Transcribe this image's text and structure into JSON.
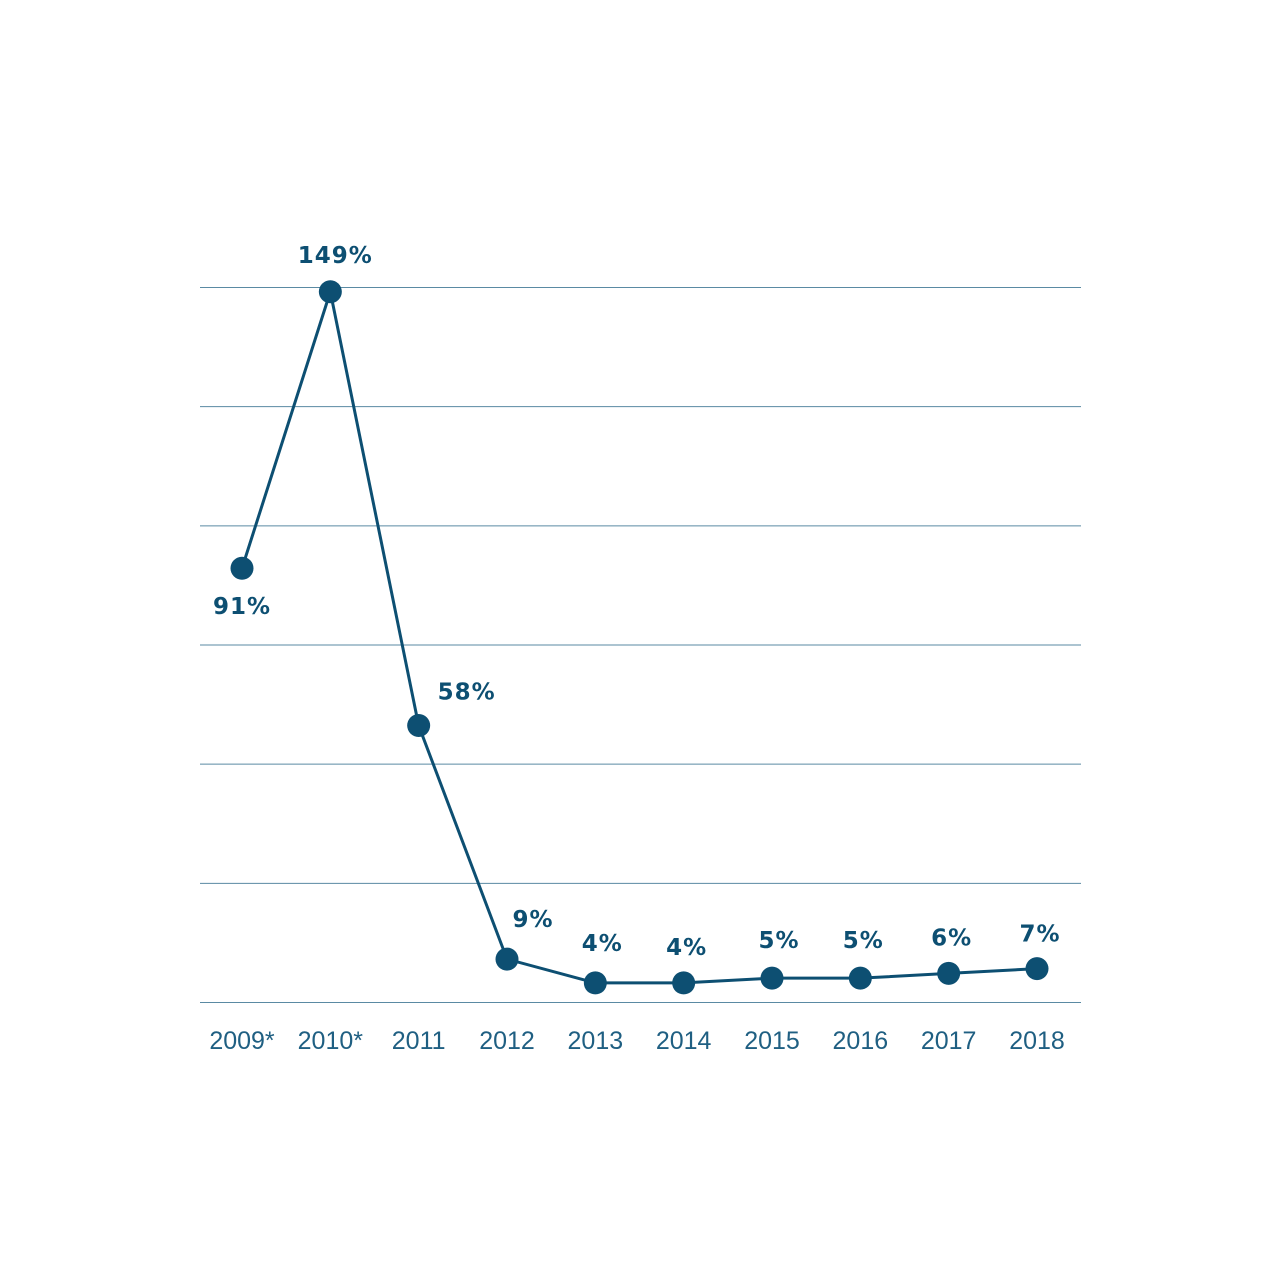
{
  "chart_data": {
    "type": "line",
    "title": "",
    "xlabel": "",
    "ylabel": "",
    "categories": [
      "2009*",
      "2010*",
      "2011",
      "2012",
      "2013",
      "2014",
      "2015",
      "2016",
      "2017",
      "2018"
    ],
    "series": [
      {
        "values": [
          91,
          149,
          58,
          9,
          4,
          4,
          5,
          5,
          6,
          7
        ],
        "labels": [
          "91%",
          "149%",
          "58%",
          "9%",
          "4%",
          "4%",
          "5%",
          "5%",
          "6%",
          "7%"
        ]
      }
    ],
    "ylim": [
      0,
      150
    ],
    "gridlines": [
      0,
      25,
      50,
      75,
      100,
      125,
      150
    ],
    "grid": true,
    "legend": "none",
    "colors": {
      "series": "#0d4f72",
      "grid": "#5a8aa3",
      "tick_text": "#1f5f82"
    }
  }
}
